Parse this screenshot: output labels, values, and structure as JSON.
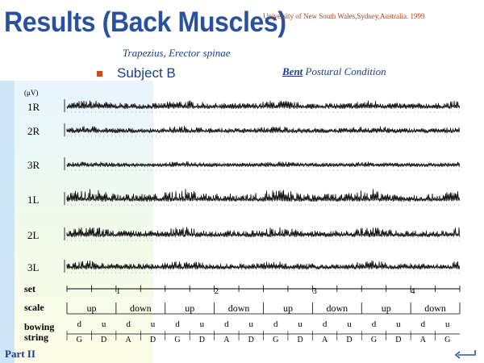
{
  "slide": {
    "title": "Results (Back Muscles)",
    "university": "University of  New South Wales,Sydney,Australia. 1999",
    "subtitle": "Trapezius, Erector spinae",
    "bullet": "Subject B",
    "condition": {
      "bent": "Bent",
      "rest": " Postural Condition"
    },
    "footer": "Part II",
    "accent_color": "#2a51a0",
    "bullet_color": "#c84b1e",
    "nav_icon": "return-arrow-icon"
  },
  "figure": {
    "channels": [
      "1R",
      "2R",
      "3R",
      "1L",
      "2L",
      "3L"
    ],
    "unit_label": "(μV)",
    "scale_row": {
      "labels": [
        "set",
        "scale",
        "bowing",
        "string"
      ],
      "set_numbers": [
        "1",
        "2",
        "3",
        "4"
      ],
      "scale_values": [
        "up",
        "down",
        "up",
        "down",
        "up",
        "down",
        "up",
        "down"
      ],
      "bowing": [
        "d",
        "u",
        "d",
        "u",
        "d",
        "u",
        "d",
        "u",
        "d",
        "u",
        "d",
        "u",
        "d",
        "u",
        "d",
        "u"
      ],
      "string": [
        "G",
        "D",
        "A",
        "D",
        "G",
        "D",
        "A",
        "D",
        "G",
        "D",
        "A",
        "D",
        "G",
        "D",
        "A",
        "G"
      ]
    }
  }
}
